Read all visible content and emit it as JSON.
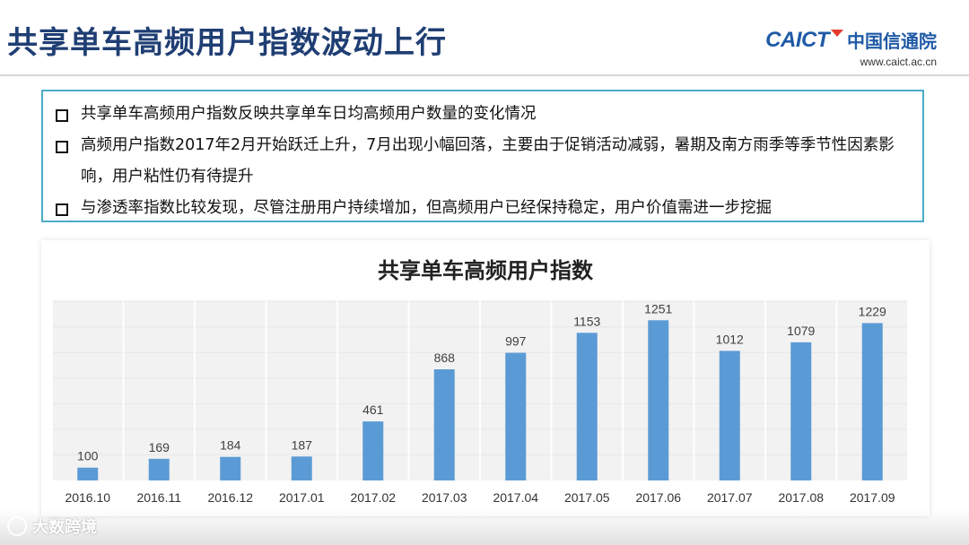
{
  "slide": {
    "title": "共享单车高频用户指数波动上行"
  },
  "logo": {
    "name_en": "CAICT",
    "name_cn": "中国信通院",
    "url": "www.caict.ac.cn"
  },
  "bullets": [
    "共享单车高频用户指数反映共享单车日均高频用户数量的变化情况",
    "高频用户指数2017年2月开始跃迁上升，7月出现小幅回落，主要由于促销活动减弱，暑期及南方雨季等季节性因素影响，用户粘性仍有待提升",
    "与渗透率指数比较发现，尽管注册用户持续增加，但高频用户已经保持稳定，用户价值需进一步挖掘"
  ],
  "watermark": {
    "text": "大数跨境"
  },
  "chart_data": {
    "type": "bar",
    "title": "共享单车高频用户指数",
    "categories": [
      "2016.10",
      "2016.11",
      "2016.12",
      "2017.01",
      "2017.02",
      "2017.03",
      "2017.04",
      "2017.05",
      "2017.06",
      "2017.07",
      "2017.08",
      "2017.09"
    ],
    "values": [
      100,
      169,
      184,
      187,
      461,
      868,
      997,
      1153,
      1251,
      1012,
      1079,
      1229
    ],
    "ylim": [
      0,
      1400
    ],
    "grid": true,
    "data_labels": true,
    "colors": {
      "bar": "#5b9bd5",
      "plot_bg": "#f2f2f2",
      "grid": "#ffffff",
      "label": "#404040"
    }
  }
}
